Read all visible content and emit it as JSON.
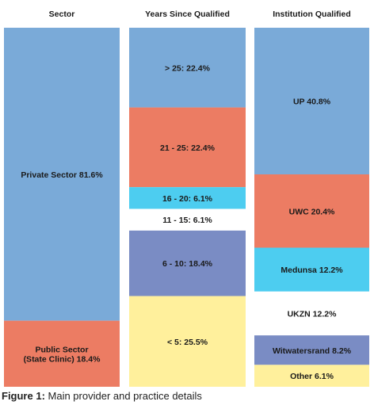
{
  "chart_data": {
    "type": "bar",
    "stacked": true,
    "orientation": "vertical",
    "columns": [
      {
        "title": "Sector",
        "segments": [
          {
            "label": "Private Sector 81.6%",
            "value": 81.6,
            "color": "#7aaad8"
          },
          {
            "label": "Public Sector\n(State Clinic) 18.4%",
            "value": 18.4,
            "color": "#ec7c63"
          }
        ]
      },
      {
        "title": "Years Since Qualified",
        "segments": [
          {
            "label": "> 25: 22.4%",
            "value": 22.4,
            "color": "#7aaad8"
          },
          {
            "label": "21 - 25: 22.4%",
            "value": 22.4,
            "color": "#ec7c63"
          },
          {
            "label": "16 - 20: 6.1%",
            "value": 6.1,
            "color": "#4dcdf0"
          },
          {
            "label": "11 - 15: 6.1%",
            "value": 6.1,
            "color": "#ffffff"
          },
          {
            "label": "6 - 10: 18.4%",
            "value": 18.4,
            "color": "#7a8cc4"
          },
          {
            "label": "< 5: 25.5%",
            "value": 25.5,
            "color": "#fff09c"
          }
        ]
      },
      {
        "title": "Institution Qualified",
        "segments": [
          {
            "label": "UP 40.8%",
            "value": 40.8,
            "color": "#7aaad8"
          },
          {
            "label": "UWC 20.4%",
            "value": 20.4,
            "color": "#ec7c63"
          },
          {
            "label": "Medunsa 12.2%",
            "value": 12.2,
            "color": "#4dcdf0"
          },
          {
            "label": "UKZN 12.2%",
            "value": 12.2,
            "color": "#ffffff"
          },
          {
            "label": "Witwatersrand 8.2%",
            "value": 8.2,
            "color": "#7a8cc4"
          },
          {
            "label": "Other 6.1%",
            "value": 6.1,
            "color": "#fff09c"
          }
        ]
      }
    ]
  },
  "caption": {
    "prefix": "Figure 1:",
    "text": " Main provider and practice details"
  }
}
